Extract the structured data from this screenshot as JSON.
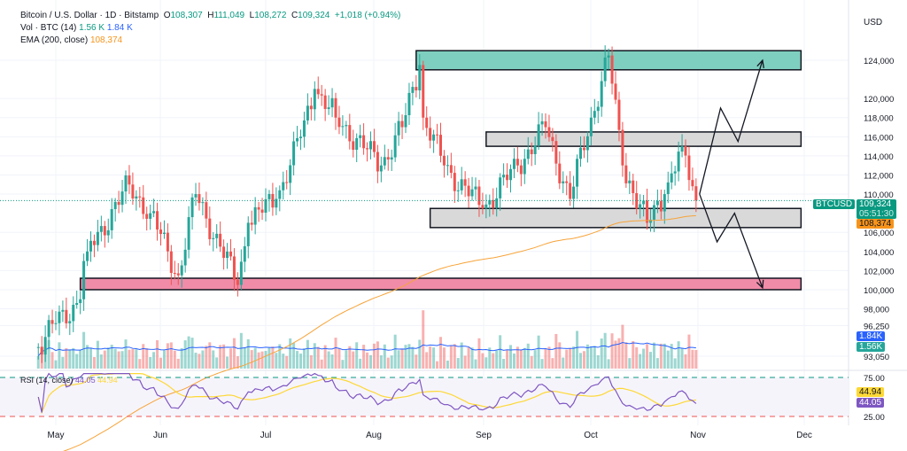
{
  "header": {
    "symbol": "Bitcoin / U.S. Dollar · 1D · Bitstamp",
    "o": "108,307",
    "h": "111,049",
    "l": "108,272",
    "c": "109,324",
    "change": "+1,018 (+0.94%)"
  },
  "vol": {
    "label": "Vol · BTC (14)",
    "v1": "1.56 K",
    "v2": "1.84 K"
  },
  "ema": {
    "label": "EMA (200, close)",
    "value": "108,374"
  },
  "rsi": {
    "label": "RSI (14, close)",
    "v1": "44.05",
    "v2": "44.94"
  },
  "currency": "USD",
  "tags": {
    "ticker": "BTCUSD",
    "price": "109,324",
    "countdown": "05:51:30",
    "ema": "108,374",
    "vol_ma": "1.84K",
    "vol": "1.56K",
    "rsi_ma": "44.94",
    "rsi": "44.05"
  },
  "colors": {
    "up": "#26a69a",
    "down": "#ef5350",
    "ema": "#f7a43a",
    "rsi": "#7e57c2",
    "rsi_ma": "#fdd835",
    "green_zone": "#7ecfbf",
    "gray_zone": "#d9d9d9",
    "pink_zone": "#f08ca8"
  },
  "chart_data": {
    "type": "candlestick",
    "price_ticks": [
      "124,000",
      "120,000",
      "118,000",
      "116,000",
      "114,000",
      "112,000",
      "110,000",
      "106,000",
      "104,000",
      "102,000",
      "100,000",
      "98,000",
      "96,250",
      "93,050"
    ],
    "price_tick_values": [
      124000,
      120000,
      118000,
      116000,
      114000,
      112000,
      110000,
      106000,
      104000,
      102000,
      100000,
      98000,
      96250,
      93050
    ],
    "rsi_ticks": [
      "75.00",
      "25.00"
    ],
    "x_ticks": [
      "May",
      "Jun",
      "Jul",
      "Aug",
      "Sep",
      "Oct",
      "Nov",
      "Dec"
    ],
    "approx_closes": [
      [
        "2025-04-26",
        94000
      ],
      [
        "2025-05-01",
        96500
      ],
      [
        "2025-05-08",
        99000
      ],
      [
        "2025-05-09",
        103000
      ],
      [
        "2025-05-10",
        104000
      ],
      [
        "2025-05-22",
        111000
      ],
      [
        "2025-05-28",
        108000
      ],
      [
        "2025-06-05",
        101500
      ],
      [
        "2025-06-10",
        110000
      ],
      [
        "2025-06-17",
        104500
      ],
      [
        "2025-06-22",
        100500
      ],
      [
        "2025-06-25",
        107000
      ],
      [
        "2025-07-03",
        109500
      ],
      [
        "2025-07-10",
        116000
      ],
      [
        "2025-07-14",
        121000
      ],
      [
        "2025-07-20",
        118000
      ],
      [
        "2025-08-02",
        113000
      ],
      [
        "2025-08-08",
        117000
      ],
      [
        "2025-08-13",
        123500
      ],
      [
        "2025-08-14",
        118000
      ],
      [
        "2025-08-20",
        113000
      ],
      [
        "2025-08-31",
        108500
      ],
      [
        "2025-09-10",
        113000
      ],
      [
        "2025-09-18",
        117000
      ],
      [
        "2025-09-25",
        109500
      ],
      [
        "2025-10-01",
        118000
      ],
      [
        "2025-10-06",
        124500
      ],
      [
        "2025-10-10",
        113000
      ],
      [
        "2025-10-17",
        107000
      ],
      [
        "2025-10-22",
        110000
      ],
      [
        "2025-10-27",
        115000
      ],
      [
        "2025-10-31",
        109324
      ]
    ],
    "zones": [
      {
        "color": "green",
        "from": "2025-08-12",
        "to": "2025-11-30",
        "low": 123000,
        "high": 125000
      },
      {
        "color": "gray",
        "from": "2025-09-01",
        "to": "2025-11-30",
        "low": 115000,
        "high": 116500
      },
      {
        "color": "gray",
        "from": "2025-08-16",
        "to": "2025-11-30",
        "low": 106500,
        "high": 108500
      },
      {
        "color": "pink",
        "from": "2025-05-08",
        "to": "2025-11-30",
        "low": 100000,
        "high": 101200
      }
    ],
    "scenario_up": [
      [
        "2025-11-01",
        110000
      ],
      [
        "2025-11-07",
        119000
      ],
      [
        "2025-11-12",
        115500
      ],
      [
        "2025-11-19",
        124000
      ]
    ],
    "scenario_down": [
      [
        "2025-11-01",
        110000
      ],
      [
        "2025-11-06",
        105000
      ],
      [
        "2025-11-11",
        108000
      ],
      [
        "2025-11-19",
        100200
      ]
    ]
  }
}
